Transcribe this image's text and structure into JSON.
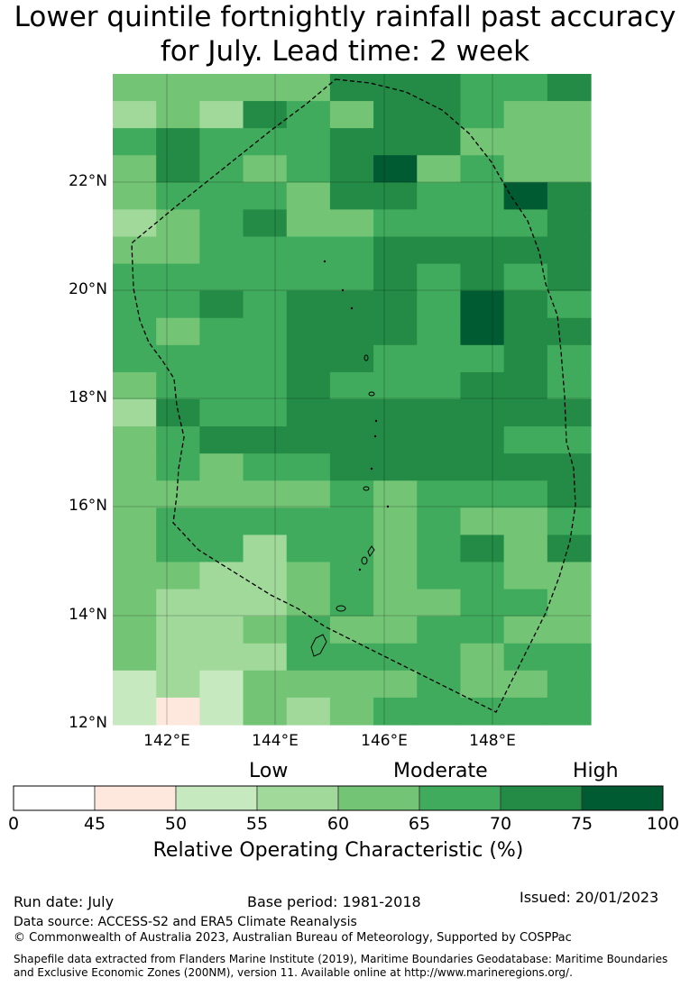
{
  "title": {
    "line1": "Lower quintile fortnightly rainfall past accuracy",
    "line2": "for July. Lead time: 2 week"
  },
  "map": {
    "lat_labels": [
      "22°N",
      "20°N",
      "18°N",
      "16°N",
      "14°N",
      "12°N"
    ],
    "lon_labels": [
      "142°E",
      "144°E",
      "146°E",
      "148°E"
    ],
    "grid_colors": [
      "#ffffff",
      "#fee8de",
      "#c7e9c0",
      "#a1d99b",
      "#74c476",
      "#41ab5d",
      "#238b45",
      "#005a32"
    ],
    "grid": [
      [
        4,
        4,
        4,
        4,
        4,
        6,
        6,
        6,
        5,
        5,
        6
      ],
      [
        3,
        4,
        3,
        6,
        5,
        4,
        6,
        6,
        5,
        4,
        4
      ],
      [
        5,
        6,
        5,
        5,
        5,
        6,
        6,
        6,
        4,
        4,
        4
      ],
      [
        4,
        6,
        5,
        4,
        5,
        6,
        7,
        4,
        5,
        4,
        4
      ],
      [
        4,
        5,
        5,
        5,
        4,
        6,
        6,
        5,
        5,
        7,
        6
      ],
      [
        3,
        4,
        5,
        6,
        4,
        4,
        5,
        5,
        5,
        5,
        6
      ],
      [
        4,
        4,
        5,
        5,
        5,
        5,
        6,
        6,
        6,
        6,
        6
      ],
      [
        5,
        5,
        5,
        5,
        5,
        5,
        6,
        5,
        6,
        5,
        6
      ],
      [
        5,
        5,
        6,
        5,
        6,
        6,
        6,
        5,
        7,
        6,
        5
      ],
      [
        5,
        4,
        5,
        5,
        6,
        6,
        6,
        5,
        7,
        6,
        6
      ],
      [
        5,
        5,
        5,
        5,
        6,
        6,
        5,
        5,
        5,
        6,
        5
      ],
      [
        4,
        5,
        5,
        5,
        6,
        5,
        5,
        5,
        6,
        6,
        5
      ],
      [
        3,
        6,
        5,
        5,
        6,
        6,
        6,
        6,
        6,
        6,
        6
      ],
      [
        4,
        5,
        6,
        6,
        6,
        6,
        6,
        6,
        6,
        5,
        5
      ],
      [
        4,
        5,
        4,
        5,
        5,
        6,
        6,
        6,
        6,
        6,
        6
      ],
      [
        4,
        4,
        4,
        4,
        4,
        5,
        4,
        5,
        5,
        5,
        6
      ],
      [
        4,
        5,
        5,
        5,
        5,
        5,
        4,
        5,
        4,
        4,
        5
      ],
      [
        4,
        5,
        5,
        3,
        5,
        5,
        4,
        5,
        6,
        4,
        6
      ],
      [
        4,
        4,
        3,
        3,
        4,
        5,
        4,
        5,
        5,
        4,
        4
      ],
      [
        4,
        3,
        3,
        3,
        4,
        5,
        4,
        4,
        5,
        5,
        4
      ],
      [
        4,
        3,
        3,
        4,
        5,
        4,
        4,
        5,
        5,
        4,
        4
      ],
      [
        4,
        3,
        3,
        3,
        5,
        5,
        5,
        5,
        4,
        5,
        5
      ],
      [
        2,
        3,
        2,
        4,
        4,
        4,
        4,
        5,
        4,
        4,
        5
      ],
      [
        2,
        1,
        2,
        4,
        3,
        4,
        5,
        5,
        5,
        5,
        5
      ]
    ]
  },
  "colorbar": {
    "categories": [
      "Low",
      "Moderate",
      "High"
    ],
    "ticks": [
      "0",
      "45",
      "50",
      "55",
      "60",
      "65",
      "70",
      "75",
      "100"
    ],
    "colors": [
      "#ffffff",
      "#fee8de",
      "#c7e9c0",
      "#a1d99b",
      "#74c476",
      "#41ab5d",
      "#238b45",
      "#005a32"
    ],
    "title": "Relative Operating Characteristic (%)"
  },
  "footer": {
    "run_date": "Run date: July",
    "base_period": "Base period: 1981-2018",
    "issued": "Issued: 20/01/2023",
    "data_source": "Data source: ACCESS-S2 and ERA5 Climate Reanalysis",
    "copyright": "© Commonwealth of Australia 2023, Australian Bureau of Meteorology, Supported by COSPPac",
    "shapefile_line1": "Shapefile data extracted from Flanders Marine Institute (2019), Maritime Boundaries Geodatabase: Maritime Boundaries",
    "shapefile_line2": "and Exclusive Economic Zones (200NM), version 11. Available online at http://www.marineregions.org/."
  }
}
